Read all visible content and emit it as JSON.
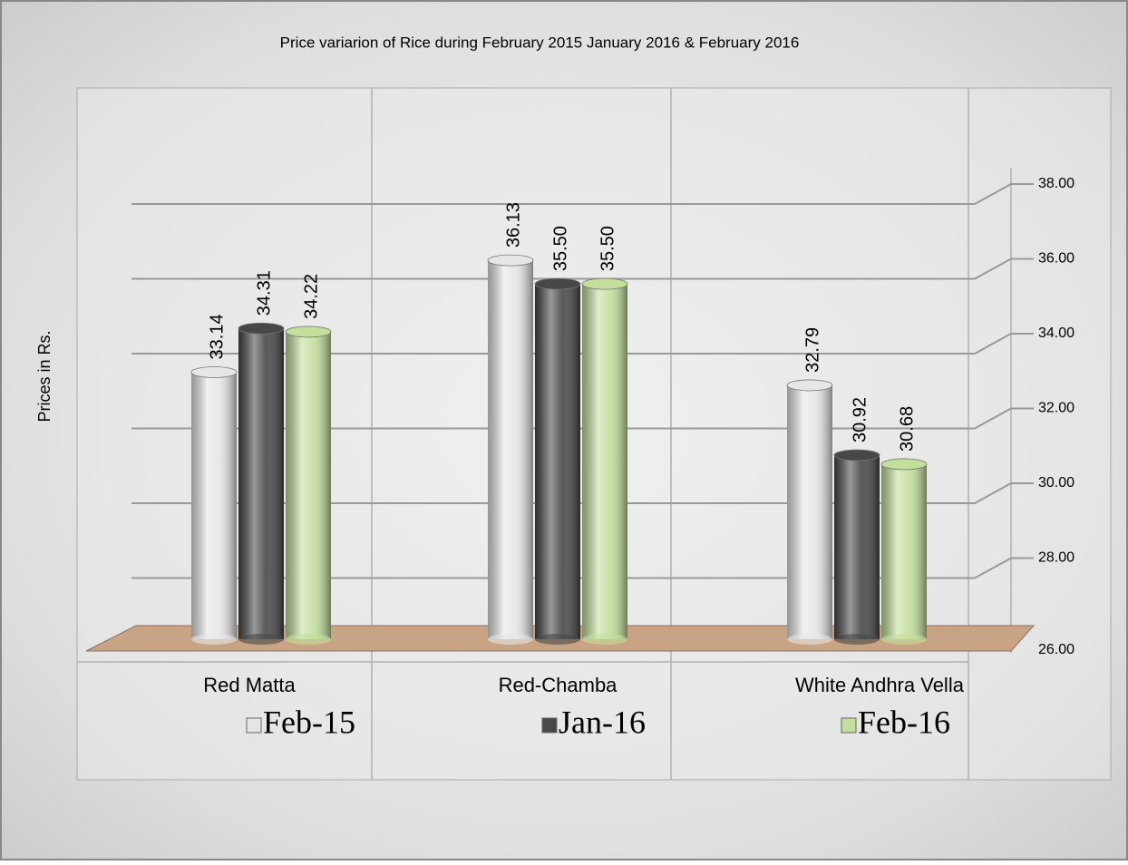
{
  "chart_data": {
    "type": "bar",
    "title": "Price variarion of Rice during February 2015 January 2016 & February 2016",
    "y_label": "Prices in Rs.",
    "categories": [
      "Red Matta",
      "Red-Chamba",
      "White Andhra Vella"
    ],
    "series": [
      {
        "name": "Feb-15",
        "color": "#e6e6e6",
        "values": [
          33.14,
          36.13,
          32.79
        ],
        "value_labels": [
          "33.14",
          "36.13",
          "32.79"
        ]
      },
      {
        "name": "Jan-16",
        "color": "#474747",
        "values": [
          34.31,
          35.5,
          30.92
        ],
        "value_labels": [
          "34.31",
          "35.50",
          "30.92"
        ]
      },
      {
        "name": "Feb-16",
        "color": "#c4df9b",
        "values": [
          34.22,
          35.5,
          30.68
        ],
        "value_labels": [
          "34.22",
          "35.50",
          "30.68"
        ]
      }
    ],
    "ylim": [
      26,
      38
    ],
    "yticks": [
      {
        "value": 26,
        "label": "26.00"
      },
      {
        "value": 28,
        "label": "28.00"
      },
      {
        "value": 30,
        "label": "30.00"
      },
      {
        "value": 32,
        "label": "32.00"
      },
      {
        "value": 34,
        "label": "34.00"
      },
      {
        "value": 36,
        "label": "36.00"
      },
      {
        "value": 38,
        "label": "38.00"
      }
    ],
    "grid": true,
    "legend": "bottom"
  }
}
